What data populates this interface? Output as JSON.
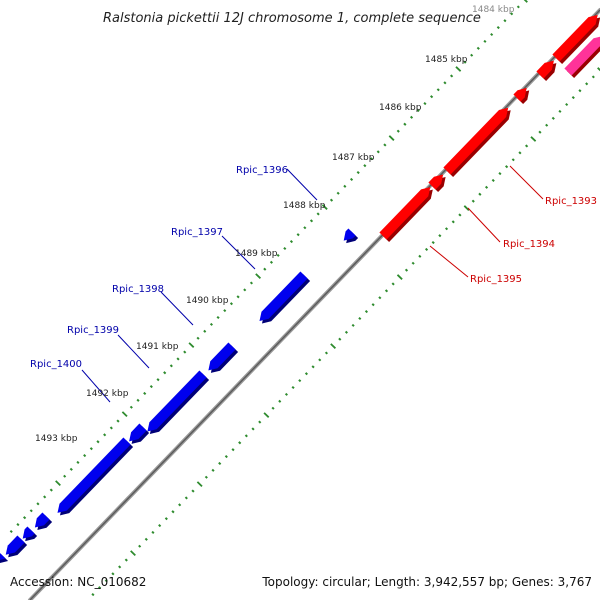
{
  "title": "Ralstonia pickettii 12J chromosome 1, complete sequence",
  "footer": {
    "accession": "Accession: NC_010682",
    "summary": "Topology: circular; Length: 3,942,557 bp; Genes: 3,767"
  },
  "kbp_labels": [
    "1484 kbp",
    "1485 kbp",
    "1486 kbp",
    "1487 kbp",
    "1488 kbp",
    "1489 kbp",
    "1490 kbp",
    "1491 kbp",
    "1492 kbp",
    "1493 kbp"
  ],
  "genes_forward": [
    "Rpic_1393",
    "Rpic_1394",
    "Rpic_1395"
  ],
  "genes_reverse": [
    "Rpic_1396",
    "Rpic_1397",
    "Rpic_1398",
    "Rpic_1399",
    "Rpic_1400"
  ],
  "colors": {
    "forward": "#ff0000",
    "reverse": "#0000ee",
    "other": "#ff3399",
    "backbone": "#8a8a8a",
    "ticks": "#2e8b2e",
    "forward_label": "#cc0000",
    "reverse_label": "#0000aa"
  }
}
